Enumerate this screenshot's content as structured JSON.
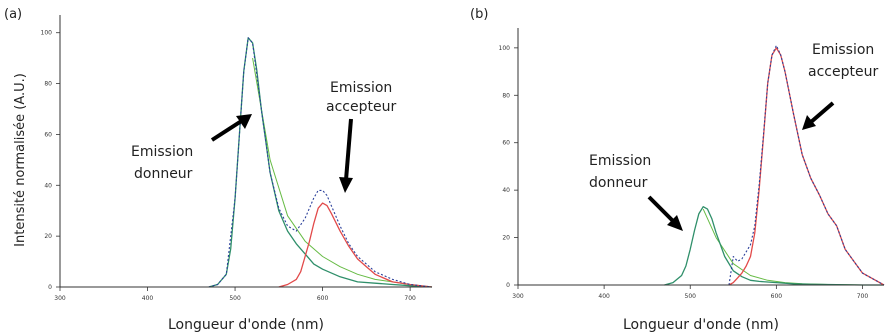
{
  "chart_data": [
    {
      "panel_label": "(a)",
      "type": "line",
      "xlabel": "Longueur d'onde (nm)",
      "ylabel": "Intensité normalisée (A.U.)",
      "xlim": [
        300,
        725
      ],
      "ylim": [
        0,
        105
      ],
      "xticks": [
        "300",
        "400",
        "500",
        "600",
        "700"
      ],
      "yticks": [
        "0",
        "20",
        "40",
        "60",
        "80",
        "100"
      ],
      "grid": false,
      "colors": {
        "donneur": "#2f8f6a",
        "accepteur": "#e24a4a",
        "total": "#2a3f9a",
        "fit": "#66bb44"
      },
      "series": [
        {
          "x": [
            470,
            480,
            490,
            495,
            500,
            505,
            510,
            515,
            520,
            525,
            530,
            540,
            550,
            560,
            570,
            580,
            590,
            600,
            620,
            640,
            660,
            680,
            700,
            725
          ],
          "values": [
            0,
            1,
            5,
            15,
            35,
            60,
            85,
            98,
            96,
            85,
            70,
            45,
            30,
            22,
            17,
            13,
            9,
            7,
            4,
            2,
            1.5,
            1,
            0.5,
            0
          ]
        },
        {
          "x": [
            550,
            560,
            570,
            575,
            580,
            585,
            590,
            595,
            600,
            605,
            610,
            620,
            630,
            640,
            650,
            660,
            680,
            700,
            725
          ],
          "values": [
            0,
            1,
            3,
            6,
            12,
            18,
            25,
            31,
            33,
            32,
            29,
            22,
            16,
            11,
            8,
            5,
            2,
            1,
            0
          ]
        },
        {
          "x": [
            470,
            480,
            490,
            500,
            510,
            515,
            520,
            530,
            540,
            550,
            560,
            570,
            580,
            590,
            595,
            600,
            605,
            610,
            620,
            630,
            640,
            650,
            660,
            680,
            700,
            725
          ],
          "values": [
            0,
            1,
            5,
            35,
            85,
            98,
            96,
            70,
            45,
            31,
            24,
            22,
            27,
            35,
            38,
            38,
            36,
            32,
            24,
            17,
            12,
            9,
            6,
            3,
            1,
            0
          ]
        },
        {
          "x": [
            520,
            540,
            560,
            580,
            600,
            620,
            640,
            660,
            680,
            700,
            725
          ],
          "values": [
            90,
            50,
            28,
            18,
            12,
            8,
            5,
            3,
            2,
            1,
            0
          ]
        }
      ],
      "annotations": {
        "donneur": [
          "Emission",
          "donneur"
        ],
        "accepteur": [
          "Emission",
          "accepteur"
        ]
      }
    },
    {
      "panel_label": "(b)",
      "type": "line",
      "xlabel": "Longueur d'onde (nm)",
      "ylabel": "",
      "xlim": [
        300,
        725
      ],
      "ylim": [
        0,
        105
      ],
      "xticks": [
        "300",
        "400",
        "500",
        "600",
        "700"
      ],
      "yticks": [
        "0",
        "20",
        "40",
        "60",
        "80",
        "100"
      ],
      "grid": false,
      "colors": {
        "donneur": "#2f8f6a",
        "accepteur": "#e24a4a",
        "total": "#2a3f9a",
        "fit": "#66bb44"
      },
      "series": [
        {
          "x": [
            470,
            480,
            490,
            495,
            500,
            505,
            510,
            515,
            520,
            525,
            530,
            540,
            550,
            560,
            570,
            580,
            600,
            620,
            640,
            660,
            700,
            725
          ],
          "values": [
            0,
            1,
            4,
            8,
            15,
            23,
            30,
            33,
            32,
            28,
            22,
            12,
            6,
            3.5,
            2,
            1.5,
            1,
            0.5,
            0.3,
            0.2,
            0,
            0
          ]
        },
        {
          "x": [
            545,
            550,
            555,
            560,
            565,
            570,
            575,
            580,
            585,
            590,
            595,
            600,
            605,
            610,
            620,
            630,
            640,
            650,
            660,
            670,
            680,
            700,
            725
          ],
          "values": [
            0,
            1,
            3,
            5,
            8,
            12,
            22,
            40,
            62,
            85,
            97,
            100,
            97,
            90,
            72,
            55,
            45,
            38,
            30,
            25,
            15,
            5,
            0
          ]
        },
        {
          "x": [
            545,
            550,
            555,
            560,
            565,
            570,
            575,
            580,
            585,
            590,
            595,
            600,
            605,
            610,
            620,
            630,
            640,
            650,
            660,
            670,
            680,
            700,
            725
          ],
          "values": [
            0,
            12,
            10,
            11,
            14,
            17,
            25,
            42,
            63,
            85,
            97,
            101,
            97,
            90,
            72,
            55,
            45,
            38,
            30,
            25,
            15,
            5,
            0
          ]
        },
        {
          "x": [
            515,
            530,
            550,
            570,
            590,
            610,
            630,
            660,
            700,
            725
          ],
          "values": [
            32,
            20,
            9,
            4,
            2,
            1,
            0.5,
            0.2,
            0,
            0
          ]
        }
      ],
      "annotations": {
        "donneur": [
          "Emission",
          "donneur"
        ],
        "accepteur": [
          "Emission",
          "accepteur"
        ]
      }
    }
  ]
}
